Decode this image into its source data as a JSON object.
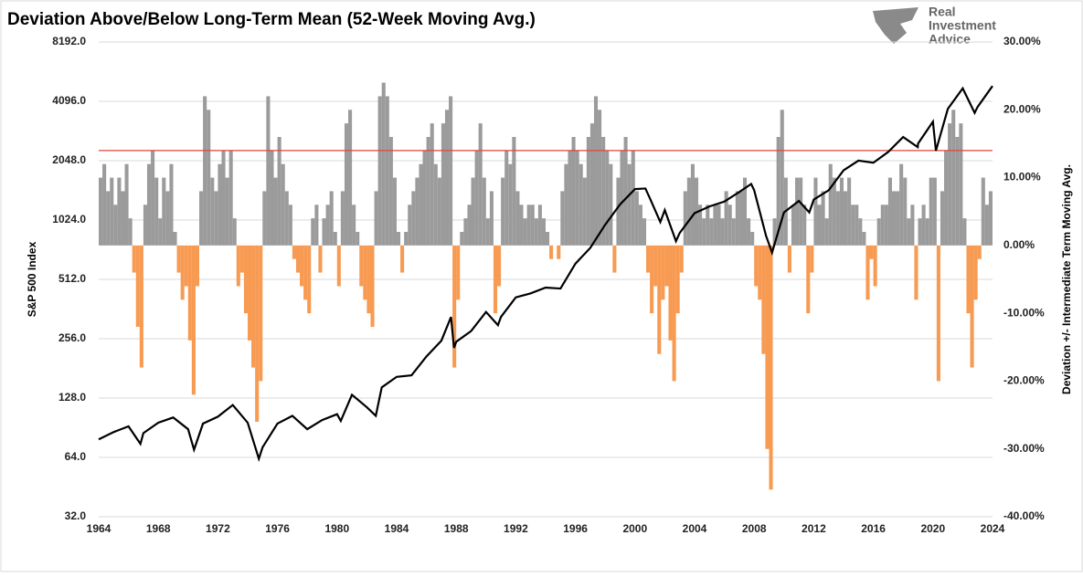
{
  "chart_data": {
    "type": "combo",
    "title": "Deviation Above/Below Long-Term Mean (52-Week Moving Avg.)",
    "logo_text": [
      "Real",
      "Investment",
      "Advice"
    ],
    "ylabel": "S&P 500 Index",
    "y2label": "Deviation +/- Intermediate Term Moving Avg.",
    "xlim": [
      1964,
      2024
    ],
    "xticks": [
      1964,
      1968,
      1972,
      1976,
      1980,
      1984,
      1988,
      1992,
      1996,
      2000,
      2004,
      2008,
      2012,
      2016,
      2020,
      2024
    ],
    "yscale": "log",
    "ylim": [
      32,
      8192
    ],
    "yticks": [
      {
        "value": 32,
        "label": "32.0"
      },
      {
        "value": 64,
        "label": "64.0"
      },
      {
        "value": 128,
        "label": "128.0"
      },
      {
        "value": 256,
        "label": "256.0"
      },
      {
        "value": 512,
        "label": "512.0"
      },
      {
        "value": 1024,
        "label": "1024.0"
      },
      {
        "value": 2048,
        "label": "2048.0"
      },
      {
        "value": 4096,
        "label": "4096.0"
      },
      {
        "value": 8192,
        "label": "8192.0"
      }
    ],
    "y2lim": [
      -40,
      30
    ],
    "y2ticks": [
      {
        "value": -40,
        "label": "-40.00%"
      },
      {
        "value": -30,
        "label": "-30.00%"
      },
      {
        "value": -20,
        "label": "-20.00%"
      },
      {
        "value": -10,
        "label": "-10.00%"
      },
      {
        "value": 0,
        "label": "0.00%"
      },
      {
        "value": 10,
        "label": "10.00%"
      },
      {
        "value": 20,
        "label": "20.00%"
      },
      {
        "value": 30,
        "label": "30.00%"
      }
    ],
    "grid": true,
    "reference_line": {
      "axis": "y2",
      "value": 14,
      "color": "#e8413c"
    },
    "series": [
      {
        "type": "bar",
        "axis": "y2",
        "color": "#9b9b9b",
        "negative_color": "#f79a52",
        "x": [
          1964,
          1964.25,
          1964.5,
          1964.75,
          1965,
          1965.25,
          1965.5,
          1965.75,
          1966,
          1966.25,
          1966.5,
          1966.75,
          1967,
          1967.25,
          1967.5,
          1967.75,
          1968,
          1968.25,
          1968.5,
          1968.75,
          1969,
          1969.25,
          1969.5,
          1969.75,
          1970,
          1970.25,
          1970.5,
          1970.75,
          1971,
          1971.25,
          1971.5,
          1971.75,
          1972,
          1972.25,
          1972.5,
          1972.75,
          1973,
          1973.25,
          1973.5,
          1973.75,
          1974,
          1974.25,
          1974.5,
          1974.75,
          1975,
          1975.25,
          1975.5,
          1975.75,
          1976,
          1976.25,
          1976.5,
          1976.75,
          1977,
          1977.25,
          1977.5,
          1977.75,
          1978,
          1978.25,
          1978.5,
          1978.75,
          1979,
          1979.25,
          1979.5,
          1979.75,
          1980,
          1980.25,
          1980.5,
          1980.75,
          1981,
          1981.25,
          1981.5,
          1981.75,
          1982,
          1982.25,
          1982.5,
          1982.75,
          1983,
          1983.25,
          1983.5,
          1983.75,
          1984,
          1984.25,
          1984.5,
          1984.75,
          1985,
          1985.25,
          1985.5,
          1985.75,
          1986,
          1986.25,
          1986.5,
          1986.75,
          1987,
          1987.25,
          1987.5,
          1987.75,
          1988,
          1988.25,
          1988.5,
          1988.75,
          1989,
          1989.25,
          1989.5,
          1989.75,
          1990,
          1990.25,
          1990.5,
          1990.75,
          1991,
          1991.25,
          1991.5,
          1991.75,
          1992,
          1992.25,
          1992.5,
          1992.75,
          1993,
          1993.25,
          1993.5,
          1993.75,
          1994,
          1994.25,
          1994.5,
          1994.75,
          1995,
          1995.25,
          1995.5,
          1995.75,
          1996,
          1996.25,
          1996.5,
          1996.75,
          1997,
          1997.25,
          1997.5,
          1997.75,
          1998,
          1998.25,
          1998.5,
          1998.75,
          1999,
          1999.25,
          1999.5,
          1999.75,
          2000,
          2000.25,
          2000.5,
          2000.75,
          2001,
          2001.25,
          2001.5,
          2001.75,
          2002,
          2002.25,
          2002.5,
          2002.75,
          2003,
          2003.25,
          2003.5,
          2003.75,
          2004,
          2004.25,
          2004.5,
          2004.75,
          2005,
          2005.25,
          2005.5,
          2005.75,
          2006,
          2006.25,
          2006.5,
          2006.75,
          2007,
          2007.25,
          2007.5,
          2007.75,
          2008,
          2008.25,
          2008.5,
          2008.75,
          2009,
          2009.25,
          2009.5,
          2009.75,
          2010,
          2010.25,
          2010.5,
          2010.75,
          2011,
          2011.25,
          2011.5,
          2011.75,
          2012,
          2012.25,
          2012.5,
          2012.75,
          2013,
          2013.25,
          2013.5,
          2013.75,
          2014,
          2014.25,
          2014.5,
          2014.75,
          2015,
          2015.25,
          2015.5,
          2015.75,
          2016,
          2016.25,
          2016.5,
          2016.75,
          2017,
          2017.25,
          2017.5,
          2017.75,
          2018,
          2018.25,
          2018.5,
          2018.75,
          2019,
          2019.25,
          2019.5,
          2019.75,
          2020,
          2020.25,
          2020.5,
          2020.75,
          2021,
          2021.25,
          2021.5,
          2021.75,
          2022,
          2022.25,
          2022.5,
          2022.75,
          2023,
          2023.25,
          2023.5,
          2023.75
        ],
        "values": [
          10,
          12,
          8,
          10,
          6,
          10,
          8,
          12,
          4,
          -4,
          -12,
          -18,
          6,
          12,
          14,
          10,
          4,
          10,
          8,
          12,
          2,
          -4,
          -8,
          -6,
          -14,
          -22,
          -6,
          8,
          22,
          20,
          10,
          8,
          12,
          14,
          10,
          14,
          4,
          -6,
          -4,
          -10,
          -14,
          -18,
          -26,
          -20,
          8,
          22,
          14,
          10,
          16,
          12,
          8,
          6,
          -2,
          -4,
          -6,
          -8,
          -10,
          4,
          6,
          -4,
          4,
          6,
          8,
          2,
          -6,
          8,
          18,
          20,
          6,
          2,
          -6,
          -8,
          -10,
          -12,
          8,
          22,
          24,
          22,
          16,
          10,
          2,
          -4,
          2,
          6,
          8,
          10,
          12,
          14,
          16,
          18,
          12,
          10,
          18,
          20,
          22,
          -18,
          -8,
          2,
          4,
          6,
          10,
          14,
          18,
          10,
          4,
          8,
          -10,
          -6,
          10,
          14,
          12,
          16,
          8,
          6,
          4,
          6,
          6,
          4,
          6,
          4,
          2,
          -2,
          0,
          -2,
          8,
          12,
          14,
          16,
          14,
          12,
          10,
          16,
          18,
          22,
          20,
          16,
          14,
          12,
          -4,
          10,
          14,
          16,
          12,
          14,
          8,
          6,
          4,
          -4,
          -10,
          -6,
          -16,
          -8,
          -6,
          -14,
          -20,
          -10,
          -4,
          8,
          10,
          12,
          10,
          6,
          4,
          6,
          4,
          6,
          6,
          4,
          8,
          6,
          4,
          8,
          8,
          10,
          4,
          2,
          -6,
          -8,
          -16,
          -30,
          -36,
          4,
          16,
          20,
          10,
          -4,
          6,
          10,
          10,
          6,
          -10,
          -4,
          10,
          6,
          8,
          4,
          12,
          10,
          8,
          10,
          8,
          10,
          6,
          6,
          4,
          2,
          -8,
          -2,
          -6,
          4,
          6,
          6,
          10,
          8,
          8,
          12,
          10,
          4,
          6,
          -8,
          4,
          6,
          4,
          10,
          10,
          -20,
          8,
          14,
          18,
          20,
          16,
          18,
          4,
          -10,
          -18,
          -8,
          -2,
          10,
          6,
          8
        ]
      },
      {
        "type": "line",
        "axis": "y",
        "color": "#000000",
        "x": [
          1964,
          1965,
          1966,
          1966.8,
          1967,
          1968,
          1969,
          1970,
          1970.4,
          1971,
          1972,
          1973,
          1974,
          1974.75,
          1975,
          1976,
          1977,
          1978,
          1979,
          1980,
          1980.25,
          1981,
          1982,
          1982.6,
          1983,
          1984,
          1985,
          1986,
          1987,
          1987.65,
          1987.85,
          1988,
          1989,
          1990,
          1990.8,
          1991,
          1992,
          1993,
          1994,
          1995,
          1996,
          1997,
          1998,
          1999,
          2000,
          2000.7,
          2001,
          2001.7,
          2002,
          2002.75,
          2003,
          2004,
          2005,
          2006,
          2007,
          2007.8,
          2008,
          2008.8,
          2009.2,
          2010,
          2011,
          2011.7,
          2012,
          2013,
          2014,
          2015,
          2016,
          2017,
          2018,
          2018.98,
          2019,
          2020,
          2020.2,
          2021,
          2022,
          2022.8,
          2023,
          2024
        ],
        "values": [
          79,
          86,
          92,
          75,
          85,
          96,
          102,
          89,
          70,
          95,
          103,
          118,
          96,
          63,
          72,
          95,
          104,
          89,
          99,
          106,
          98,
          133,
          115,
          104,
          145,
          164,
          167,
          208,
          250,
          330,
          230,
          247,
          280,
          350,
          300,
          330,
          415,
          435,
          465,
          460,
          615,
          740,
          970,
          1230,
          1470,
          1480,
          1320,
          1000,
          1150,
          800,
          880,
          1110,
          1200,
          1270,
          1420,
          1560,
          1450,
          850,
          700,
          1120,
          1280,
          1120,
          1300,
          1450,
          1830,
          2050,
          2000,
          2270,
          2700,
          2400,
          2500,
          3230,
          2300,
          3750,
          4770,
          3580,
          3840,
          4900
        ]
      }
    ]
  }
}
